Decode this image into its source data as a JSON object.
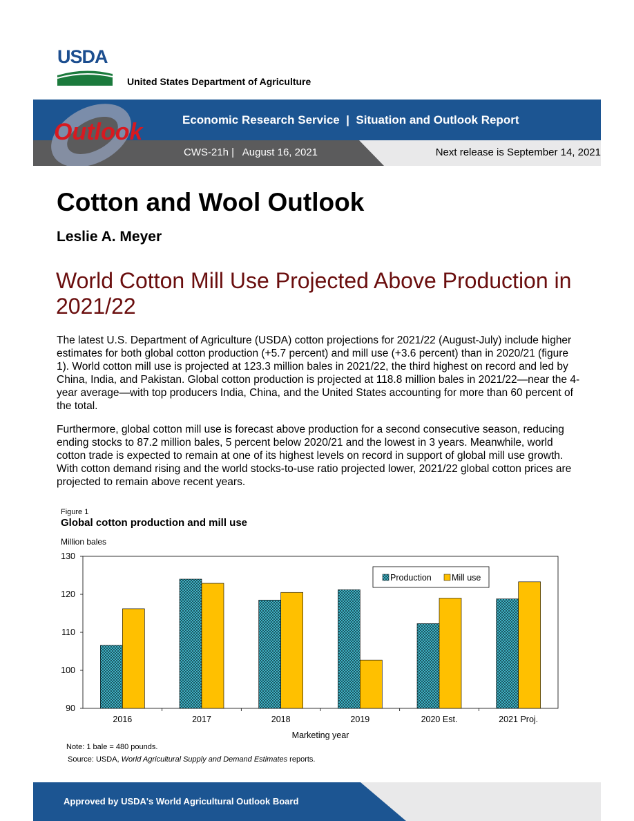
{
  "logo": {
    "wordmark": "USDA",
    "department": "United States Department of Agriculture"
  },
  "header": {
    "logo_text": "Outlook",
    "service_line": "Economic Research Service  |  Situation and Outlook Report",
    "report_id": "CWS-21h |   August 16, 2021",
    "next_release": "Next release is September 14, 2021",
    "colors": {
      "band_blue": "#1c5592",
      "band_gray": "#5b5b5c",
      "logo_red": "#d71920"
    }
  },
  "title": "Cotton and Wool Outlook",
  "author": "Leslie A. Meyer",
  "headline": "World Cotton Mill Use Projected Above Production in 2021/22",
  "paragraphs": [
    "The latest U.S. Department of Agriculture (USDA) cotton projections for 2021/22 (August-July) include higher estimates for both global cotton production (+5.7 percent) and mill use (+3.6 percent) than in 2020/21 (figure 1). World cotton mill use is projected at 123.3 million bales in 2021/22, the third highest on record and led by China, India, and Pakistan. Global cotton production is projected at 118.8 million bales in 2021/22—near the 4-year average—with top producers India, China, and the United States accounting for more than 60 percent of the total.",
    "Furthermore, global cotton mill use is forecast above production for a second consecutive season, reducing ending stocks to 87.2 million bales, 5 percent below 2020/21 and the lowest in 3 years. Meanwhile, world cotton trade is expected to remain at one of its highest levels on record in support of global mill use growth. With cotton demand rising and the world stocks-to-use ratio projected lower, 2021/22 global cotton prices are projected to remain above recent years."
  ],
  "figure": {
    "label": "Figure 1",
    "title": "Global cotton production and mill use",
    "unit": "Million bales",
    "note": "Note: 1 bale = 480 pounds.",
    "source_prefix": "Source: USDA, ",
    "source_italic": "World Agricultural Supply and Demand Estimates",
    "source_suffix": " reports."
  },
  "chart_data": {
    "type": "bar",
    "categories": [
      "2016",
      "2017",
      "2018",
      "2019",
      "2020 Est.",
      "2021 Proj."
    ],
    "series": [
      {
        "name": "Production",
        "values": [
          106.6,
          124.0,
          118.5,
          121.2,
          112.3,
          118.8
        ],
        "color": "#3fb3c6",
        "pattern": "checkered"
      },
      {
        "name": "Mill use",
        "values": [
          116.2,
          122.9,
          120.5,
          102.7,
          119.0,
          123.3
        ],
        "color": "#ffc000"
      }
    ],
    "xlabel": "Marketing year",
    "ylabel": "Million bales",
    "ylim": [
      90,
      130
    ],
    "yticks": [
      90,
      100,
      110,
      120,
      130
    ],
    "grid": false,
    "legend": "top-right"
  },
  "footer": {
    "text": "Approved by USDA's World Agricultural Outlook Board"
  }
}
